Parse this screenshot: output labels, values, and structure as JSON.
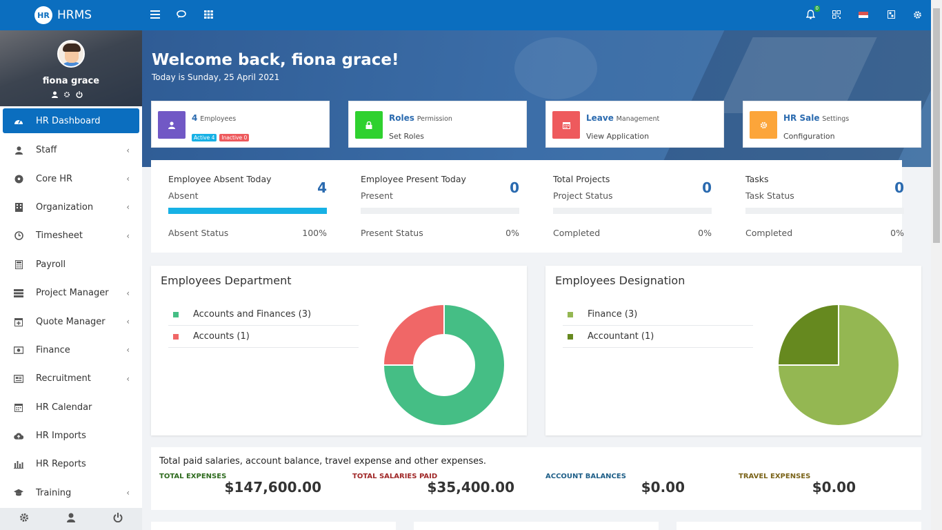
{
  "app": {
    "brand": "HRMS",
    "logo_text": "HR"
  },
  "topbar": {
    "notification_count": "0"
  },
  "sidebar": {
    "user_name": "fiona grace",
    "items": [
      {
        "label": "HR Dashboard",
        "icon": "dashboard-icon",
        "chevron": ""
      },
      {
        "label": "Staff",
        "icon": "user-icon",
        "chevron": "‹"
      },
      {
        "label": "Core HR",
        "icon": "soccer-ball-icon",
        "chevron": "‹"
      },
      {
        "label": "Organization",
        "icon": "building-icon",
        "chevron": "‹"
      },
      {
        "label": "Timesheet",
        "icon": "clock-icon",
        "chevron": "‹"
      },
      {
        "label": "Payroll",
        "icon": "calculator-icon",
        "chevron": ""
      },
      {
        "label": "Project Manager",
        "icon": "tasks-icon",
        "chevron": "‹"
      },
      {
        "label": "Quote Manager",
        "icon": "calendar-plus-icon",
        "chevron": "‹"
      },
      {
        "label": "Finance",
        "icon": "money-icon",
        "chevron": "‹"
      },
      {
        "label": "Recruitment",
        "icon": "newspaper-icon",
        "chevron": "‹"
      },
      {
        "label": "HR Calendar",
        "icon": "calendar-icon",
        "chevron": ""
      },
      {
        "label": "HR Imports",
        "icon": "cloud-upload-icon",
        "chevron": ""
      },
      {
        "label": "HR Reports",
        "icon": "bar-chart-icon",
        "chevron": ""
      },
      {
        "label": "Training",
        "icon": "graduation-cap-icon",
        "chevron": "‹"
      }
    ]
  },
  "hero": {
    "welcome": "Welcome back, fiona grace!",
    "today": "Today is Sunday, 25 April 2021"
  },
  "cards": {
    "employees": {
      "count": "4",
      "label": "Employees",
      "active": "Active 4",
      "inactive": "Inactive 0",
      "color": "#7158c5"
    },
    "roles": {
      "title": "Roles",
      "sub": "Permission",
      "link": "Set Roles",
      "color": "#2fd12f"
    },
    "leave": {
      "title": "Leave",
      "sub": "Management",
      "link": "View Application",
      "color": "#ee5a5d"
    },
    "sale": {
      "title": "HR Sale",
      "sub": "Settings",
      "link": "Configuration",
      "color": "#fca53a"
    }
  },
  "stats": [
    {
      "title": "Employee Absent Today",
      "sub": "Absent",
      "value": "4",
      "status": "Absent Status",
      "percent": "100%",
      "fill": 1.0
    },
    {
      "title": "Employee Present Today",
      "sub": "Present",
      "value": "0",
      "status": "Present Status",
      "percent": "0%",
      "fill": 0
    },
    {
      "title": "Total Projects",
      "sub": "Project Status",
      "value": "0",
      "status": "Completed",
      "percent": "0%",
      "fill": 0
    },
    {
      "title": "Tasks",
      "sub": "Task Status",
      "value": "0",
      "status": "Completed",
      "percent": "0%",
      "fill": 0
    }
  ],
  "department": {
    "title": "Employees Department",
    "legend": [
      {
        "label": "Accounts and Finances (3)",
        "color": "#45be85"
      },
      {
        "label": "Accounts (1)",
        "color": "#f06767"
      }
    ]
  },
  "designation": {
    "title": "Employees Designation",
    "legend": [
      {
        "label": "Finance (3)",
        "color": "#94b752"
      },
      {
        "label": "Accountant (1)",
        "color": "#66891f"
      }
    ]
  },
  "chart_data": [
    {
      "type": "pie",
      "variant": "donut",
      "categories": [
        "Accounts and Finances",
        "Accounts"
      ],
      "values": [
        3,
        1
      ],
      "colors": [
        "#45be85",
        "#f06767"
      ]
    },
    {
      "type": "pie",
      "categories": [
        "Finance",
        "Accountant"
      ],
      "values": [
        3,
        1
      ],
      "colors": [
        "#94b752",
        "#66891f"
      ]
    }
  ],
  "finance": {
    "heading": "Total paid salaries, account balance, travel expense and other expenses.",
    "items": [
      {
        "label": "TOTAL EXPENSES",
        "value": "$147,600.00",
        "color": "#2e6b1e"
      },
      {
        "label": "TOTAL SALARIES PAID",
        "value": "$35,400.00",
        "color": "#a02828"
      },
      {
        "label": "ACCOUNT BALANCES",
        "value": "$0.00",
        "color": "#1f5f88"
      },
      {
        "label": "TRAVEL EXPENSES",
        "value": "$0.00",
        "color": "#7a6319"
      }
    ]
  }
}
